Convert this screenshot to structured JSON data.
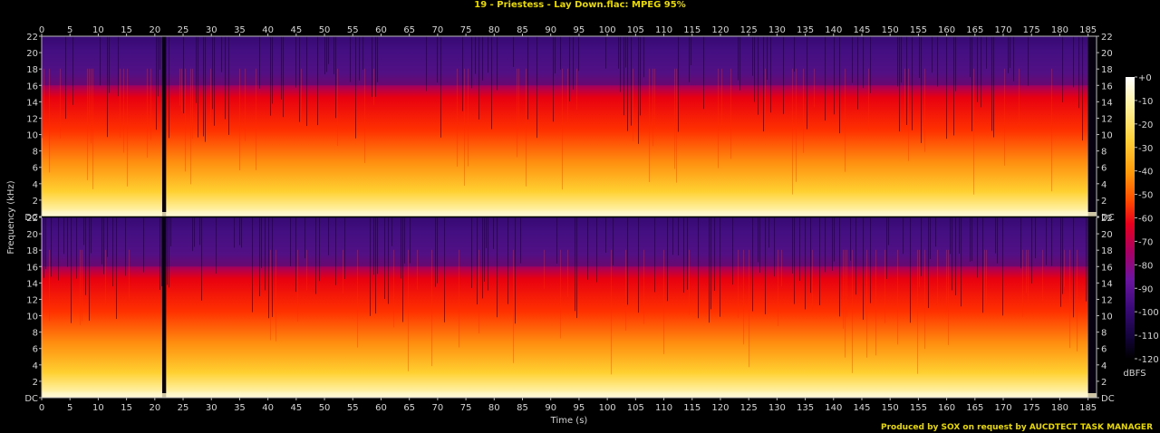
{
  "title": "19 - Priestess - Lay Down.flac: MPEG 95%",
  "footer": "Produced by SOX on request by AUCDTECT TASK MANAGER",
  "chart_data": {
    "type": "heatmap",
    "subtype": "spectrogram",
    "channels": 2,
    "xlabel": "Time (s)",
    "ylabel": "Frequency (kHz)",
    "xlim": [
      0,
      186.5
    ],
    "ylim": [
      0,
      22
    ],
    "x_ticks": [
      0,
      5,
      10,
      15,
      20,
      25,
      30,
      35,
      40,
      45,
      50,
      55,
      60,
      65,
      70,
      75,
      80,
      85,
      90,
      95,
      100,
      105,
      110,
      115,
      120,
      125,
      130,
      135,
      140,
      145,
      150,
      155,
      160,
      165,
      170,
      175,
      180,
      185
    ],
    "y_ticks": [
      "DC",
      "2",
      "4",
      "6",
      "8",
      "10",
      "12",
      "14",
      "16",
      "18",
      "20",
      "22"
    ],
    "colorbar": {
      "label": "dBFS",
      "ticks": [
        "+0",
        "-10",
        "-20",
        "-30",
        "-40",
        "-50",
        "-60",
        "-70",
        "-80",
        "-90",
        "-100",
        "-110",
        "-120"
      ],
      "colors": [
        "#ffffff",
        "#fff2a0",
        "#ffd23c",
        "#ff9a0a",
        "#ff4a00",
        "#e8001c",
        "#a80064",
        "#6a14a0",
        "#3a0a78",
        "#14043c",
        "#000000"
      ]
    },
    "silent_gaps_s": [
      [
        21.3,
        22.0
      ],
      [
        185.0,
        186.5
      ]
    ],
    "lowpass_cutoff_khz": 16
  }
}
